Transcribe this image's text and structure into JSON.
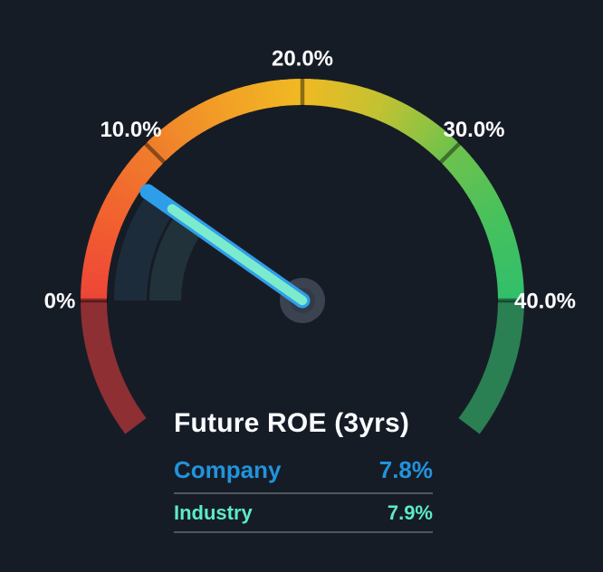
{
  "chart_data": {
    "type": "gauge",
    "title": "Future ROE (3yrs)",
    "unit": "%",
    "min": 0,
    "max": 40,
    "ticks": [
      {
        "value": 0,
        "label": "0%"
      },
      {
        "value": 10,
        "label": "10.0%"
      },
      {
        "value": 20,
        "label": "20.0%"
      },
      {
        "value": 30,
        "label": "30.0%"
      },
      {
        "value": 40,
        "label": "40.0%"
      }
    ],
    "needle_value": 7.8,
    "series": [
      {
        "name": "Company",
        "value": 7.8,
        "display": "7.8%"
      },
      {
        "name": "Industry",
        "value": 7.9,
        "display": "7.9%"
      }
    ],
    "layout": {
      "start_angle_deg": 180,
      "end_angle_deg": 0,
      "overflow_deg": 37,
      "legend_position": "bottom-center",
      "grid": false
    },
    "arc_gradient_stops": [
      [
        0,
        "#ed4438"
      ],
      [
        5,
        "#f2602f"
      ],
      [
        10,
        "#ef7d2c"
      ],
      [
        15,
        "#f29f26"
      ],
      [
        20,
        "#f0ba23"
      ],
      [
        25,
        "#c0c233"
      ],
      [
        30,
        "#6ec24d"
      ],
      [
        35,
        "#46c15d"
      ],
      [
        40,
        "#31bf6b"
      ]
    ]
  },
  "colors": {
    "background": "#161c26",
    "below_min_arc": "#8e2f34",
    "above_max_arc": "#2a7f53",
    "tick_line": "rgba(0,0,0,0.42)",
    "tick_label": "#fdfdfe",
    "needle_outline": "#2f9ee9",
    "needle_core": "#7ceacd",
    "hub": "#3b4250",
    "hub_inner": "#333a47",
    "company_fan": "#1d2c3b",
    "industry_fan": "#22323a",
    "company_accent": "#2193dd",
    "industry_accent": "#5debc4",
    "divider": "#4e565f",
    "title_text": "#fafcfe"
  },
  "panel": {
    "title": "Future ROE (3yrs)",
    "rows": [
      {
        "label": "Company",
        "value": "7.8%"
      },
      {
        "label": "Industry",
        "value": "7.9%"
      }
    ]
  }
}
